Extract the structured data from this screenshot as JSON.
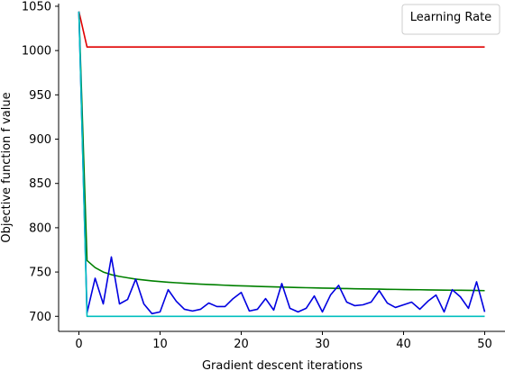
{
  "chart_data": {
    "type": "line",
    "title": "",
    "xlabel": "Gradient descent iterations",
    "ylabel": "Objective function f value",
    "xlim": [
      -2.5,
      52.5
    ],
    "ylim": [
      683,
      1053
    ],
    "xticks": [
      0,
      10,
      20,
      30,
      40,
      50
    ],
    "yticks": [
      700,
      750,
      800,
      850,
      900,
      950,
      1000,
      1050
    ],
    "grid": false,
    "legend": {
      "title": "Learning Rate",
      "placement": "top-right",
      "entries": []
    },
    "x": [
      0,
      1,
      2,
      3,
      4,
      5,
      6,
      7,
      8,
      9,
      10,
      11,
      12,
      13,
      14,
      15,
      16,
      17,
      18,
      19,
      20,
      21,
      22,
      23,
      24,
      25,
      26,
      27,
      28,
      29,
      30,
      31,
      32,
      33,
      34,
      35,
      36,
      37,
      38,
      39,
      40,
      41,
      42,
      43,
      44,
      45,
      46,
      47,
      48,
      49,
      50
    ],
    "series": [
      {
        "color": "#e00000",
        "values": [
          1044,
          1004,
          1004,
          1004,
          1004,
          1004,
          1004,
          1004,
          1004,
          1004,
          1004,
          1004,
          1004,
          1004,
          1004,
          1004,
          1004,
          1004,
          1004,
          1004,
          1004,
          1004,
          1004,
          1004,
          1004,
          1004,
          1004,
          1004,
          1004,
          1004,
          1004,
          1004,
          1004,
          1004,
          1004,
          1004,
          1004,
          1004,
          1004,
          1004,
          1004,
          1004,
          1004,
          1004,
          1004,
          1004,
          1004,
          1004,
          1004,
          1004,
          1004
        ]
      },
      {
        "color": "#008000",
        "values": [
          1044,
          763,
          755,
          750,
          747,
          745,
          743.5,
          742,
          741,
          740,
          739.2,
          738.5,
          737.9,
          737.3,
          736.8,
          736.3,
          735.9,
          735.5,
          735.1,
          734.7,
          734.4,
          734.1,
          733.8,
          733.5,
          733.2,
          733,
          732.7,
          732.5,
          732.3,
          732.1,
          731.9,
          731.7,
          731.5,
          731.3,
          731.1,
          731,
          730.8,
          730.7,
          730.5,
          730.4,
          730.2,
          730.1,
          730,
          729.8,
          729.7,
          729.6,
          729.5,
          729.4,
          729.3,
          729.2,
          729
        ]
      },
      {
        "color": "#0000e0",
        "values": [
          1044,
          704,
          743,
          714,
          767,
          714,
          719,
          742,
          714,
          703,
          705,
          730,
          717,
          708,
          706,
          708,
          715,
          711,
          711,
          720,
          727,
          706,
          708,
          720,
          707,
          737,
          709,
          705,
          709,
          723,
          705,
          724,
          735,
          716,
          712,
          713,
          716,
          729,
          715,
          710,
          713,
          716,
          708,
          717,
          724,
          705,
          730,
          722,
          709,
          739,
          705
        ]
      },
      {
        "color": "#00bfbf",
        "values": [
          1044,
          700,
          700,
          700,
          700,
          700,
          700,
          700,
          700,
          700,
          700,
          700,
          700,
          700,
          700,
          700,
          700,
          700,
          700,
          700,
          700,
          700,
          700,
          700,
          700,
          700,
          700,
          700,
          700,
          700,
          700,
          700,
          700,
          700,
          700,
          700,
          700,
          700,
          700,
          700,
          700,
          700,
          700,
          700,
          700,
          700,
          700,
          700,
          700,
          700,
          700
        ]
      }
    ]
  }
}
